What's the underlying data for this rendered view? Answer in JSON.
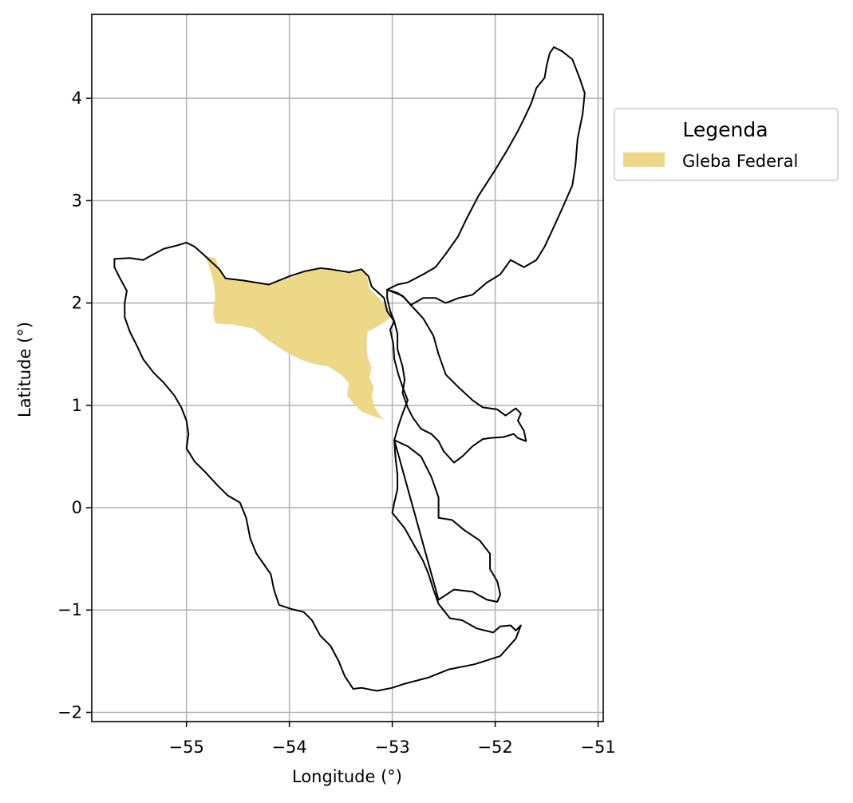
{
  "chart_data": {
    "type": "map",
    "xlabel": "Longitude (°)",
    "ylabel": "Latitude (°)",
    "xlim": [
      -55.92,
      -50.95
    ],
    "ylim": [
      -2.09,
      4.82
    ],
    "x_ticks": [
      {
        "value": -55,
        "label": "−55"
      },
      {
        "value": -54,
        "label": "−54"
      },
      {
        "value": -53,
        "label": "−53"
      },
      {
        "value": -52,
        "label": "−52"
      },
      {
        "value": -51,
        "label": "−51"
      }
    ],
    "y_ticks": [
      {
        "value": -2,
        "label": "−2"
      },
      {
        "value": -1,
        "label": "−1"
      },
      {
        "value": 0,
        "label": "0"
      },
      {
        "value": 1,
        "label": "1"
      },
      {
        "value": 2,
        "label": "2"
      },
      {
        "value": 3,
        "label": "3"
      },
      {
        "value": 4,
        "label": "4"
      }
    ],
    "grid": true,
    "legend": {
      "title": "Legenda",
      "placement": "outside-right-top",
      "entries": [
        {
          "label": "Gleba Federal",
          "color": "#ecd886"
        }
      ]
    },
    "layers": [
      {
        "name": "Gleba Federal",
        "kind": "fill",
        "color": "#ecd886",
        "coords": [
          [
            -54.82,
            2.46
          ],
          [
            -54.72,
            2.44
          ],
          [
            -54.68,
            2.33
          ],
          [
            -54.62,
            2.24
          ],
          [
            -54.45,
            2.22
          ],
          [
            -54.2,
            2.18
          ],
          [
            -53.95,
            2.26
          ],
          [
            -53.78,
            2.33
          ],
          [
            -53.6,
            2.32
          ],
          [
            -53.45,
            2.29
          ],
          [
            -53.32,
            2.33
          ],
          [
            -53.25,
            2.28
          ],
          [
            -53.22,
            2.14
          ],
          [
            -53.12,
            2.04
          ],
          [
            -53.05,
            1.95
          ],
          [
            -53.02,
            1.86
          ],
          [
            -53.08,
            1.81
          ],
          [
            -53.16,
            1.76
          ],
          [
            -53.24,
            1.72
          ],
          [
            -53.25,
            1.6
          ],
          [
            -53.24,
            1.47
          ],
          [
            -53.2,
            1.37
          ],
          [
            -53.22,
            1.27
          ],
          [
            -53.18,
            1.17
          ],
          [
            -53.2,
            1.08
          ],
          [
            -53.17,
            0.98
          ],
          [
            -53.12,
            0.9
          ],
          [
            -53.08,
            0.86
          ],
          [
            -53.18,
            0.89
          ],
          [
            -53.3,
            0.94
          ],
          [
            -53.38,
            1.02
          ],
          [
            -53.44,
            1.1
          ],
          [
            -53.42,
            1.22
          ],
          [
            -53.5,
            1.3
          ],
          [
            -53.62,
            1.38
          ],
          [
            -53.75,
            1.4
          ],
          [
            -53.9,
            1.45
          ],
          [
            -54.05,
            1.53
          ],
          [
            -54.2,
            1.63
          ],
          [
            -54.35,
            1.75
          ],
          [
            -54.55,
            1.79
          ],
          [
            -54.72,
            1.8
          ],
          [
            -54.74,
            1.9
          ],
          [
            -54.72,
            2.08
          ],
          [
            -54.74,
            2.22
          ],
          [
            -54.78,
            2.36
          ]
        ]
      },
      {
        "name": "outline-west",
        "kind": "outline",
        "coords": [
          [
            -55.7,
            2.43
          ],
          [
            -55.55,
            2.44
          ],
          [
            -55.42,
            2.42
          ],
          [
            -55.33,
            2.47
          ],
          [
            -55.22,
            2.53
          ],
          [
            -55.1,
            2.56
          ],
          [
            -55.0,
            2.59
          ],
          [
            -54.92,
            2.55
          ],
          [
            -54.82,
            2.46
          ],
          [
            -54.68,
            2.33
          ],
          [
            -54.62,
            2.24
          ],
          [
            -54.45,
            2.22
          ],
          [
            -54.2,
            2.18
          ],
          [
            -54.0,
            2.26
          ],
          [
            -53.85,
            2.31
          ],
          [
            -53.7,
            2.34
          ],
          [
            -53.6,
            2.33
          ],
          [
            -53.42,
            2.3
          ],
          [
            -53.3,
            2.33
          ],
          [
            -53.23,
            2.26
          ],
          [
            -53.2,
            2.16
          ],
          [
            -53.08,
            2.05
          ],
          [
            -53.05,
            1.92
          ],
          [
            -52.98,
            1.82
          ],
          [
            -53.02,
            1.74
          ],
          [
            -52.99,
            1.6
          ],
          [
            -52.98,
            1.45
          ],
          [
            -52.94,
            1.3
          ],
          [
            -52.9,
            1.18
          ],
          [
            -52.85,
            1.05
          ],
          [
            -52.9,
            0.92
          ],
          [
            -52.94,
            0.8
          ],
          [
            -52.98,
            0.66
          ],
          [
            -52.97,
            0.5
          ],
          [
            -52.95,
            0.32
          ],
          [
            -52.95,
            0.18
          ],
          [
            -52.98,
            0.05
          ],
          [
            -53.0,
            -0.05
          ],
          [
            -52.88,
            -0.2
          ],
          [
            -52.78,
            -0.38
          ],
          [
            -52.7,
            -0.52
          ],
          [
            -52.65,
            -0.64
          ],
          [
            -52.6,
            -0.8
          ],
          [
            -52.55,
            -0.94
          ],
          [
            -52.44,
            -1.08
          ],
          [
            -52.32,
            -1.1
          ],
          [
            -52.18,
            -1.18
          ],
          [
            -52.02,
            -1.22
          ],
          [
            -51.95,
            -1.16
          ],
          [
            -51.85,
            -1.15
          ],
          [
            -51.8,
            -1.2
          ],
          [
            -51.75,
            -1.15
          ],
          [
            -51.8,
            -1.28
          ],
          [
            -51.95,
            -1.45
          ],
          [
            -52.2,
            -1.53
          ],
          [
            -52.45,
            -1.58
          ],
          [
            -52.65,
            -1.66
          ],
          [
            -52.88,
            -1.72
          ],
          [
            -53.0,
            -1.76
          ],
          [
            -53.15,
            -1.79
          ],
          [
            -53.3,
            -1.76
          ],
          [
            -53.38,
            -1.77
          ],
          [
            -53.46,
            -1.65
          ],
          [
            -53.52,
            -1.5
          ],
          [
            -53.6,
            -1.35
          ],
          [
            -53.7,
            -1.25
          ],
          [
            -53.78,
            -1.1
          ],
          [
            -53.86,
            -1.02
          ],
          [
            -53.98,
            -0.99
          ],
          [
            -54.1,
            -0.95
          ],
          [
            -54.15,
            -0.8
          ],
          [
            -54.18,
            -0.65
          ],
          [
            -54.25,
            -0.55
          ],
          [
            -54.32,
            -0.45
          ],
          [
            -54.38,
            -0.3
          ],
          [
            -54.42,
            -0.1
          ],
          [
            -54.48,
            0.05
          ],
          [
            -54.6,
            0.12
          ],
          [
            -54.7,
            0.22
          ],
          [
            -54.82,
            0.35
          ],
          [
            -54.92,
            0.45
          ],
          [
            -55.0,
            0.58
          ],
          [
            -54.98,
            0.72
          ],
          [
            -55.0,
            0.85
          ],
          [
            -55.05,
            0.98
          ],
          [
            -55.12,
            1.1
          ],
          [
            -55.22,
            1.22
          ],
          [
            -55.32,
            1.32
          ],
          [
            -55.42,
            1.45
          ],
          [
            -55.48,
            1.58
          ],
          [
            -55.55,
            1.72
          ],
          [
            -55.6,
            1.86
          ],
          [
            -55.6,
            2.0
          ],
          [
            -55.58,
            2.12
          ],
          [
            -55.65,
            2.25
          ],
          [
            -55.7,
            2.35
          ],
          [
            -55.7,
            2.43
          ]
        ]
      },
      {
        "name": "outline-central",
        "kind": "outline",
        "coords": [
          [
            -53.05,
            2.13
          ],
          [
            -52.9,
            2.07
          ],
          [
            -52.82,
            1.98
          ],
          [
            -52.7,
            1.85
          ],
          [
            -52.6,
            1.68
          ],
          [
            -52.55,
            1.5
          ],
          [
            -52.48,
            1.3
          ],
          [
            -52.36,
            1.18
          ],
          [
            -52.22,
            1.05
          ],
          [
            -52.12,
            0.98
          ],
          [
            -51.98,
            0.96
          ],
          [
            -51.9,
            0.9
          ],
          [
            -51.8,
            0.97
          ],
          [
            -51.75,
            0.92
          ],
          [
            -51.78,
            0.85
          ],
          [
            -51.72,
            0.75
          ],
          [
            -51.7,
            0.65
          ],
          [
            -51.78,
            0.68
          ],
          [
            -51.82,
            0.72
          ],
          [
            -51.92,
            0.69
          ],
          [
            -52.05,
            0.68
          ],
          [
            -52.12,
            0.67
          ],
          [
            -52.22,
            0.6
          ],
          [
            -52.32,
            0.5
          ],
          [
            -52.4,
            0.44
          ],
          [
            -52.5,
            0.55
          ],
          [
            -52.55,
            0.65
          ],
          [
            -52.62,
            0.72
          ],
          [
            -52.72,
            0.77
          ],
          [
            -52.8,
            0.88
          ],
          [
            -52.85,
            0.98
          ],
          [
            -52.9,
            1.12
          ],
          [
            -52.88,
            1.25
          ],
          [
            -52.9,
            1.38
          ],
          [
            -52.95,
            1.55
          ],
          [
            -52.95,
            1.7
          ],
          [
            -52.98,
            1.82
          ],
          [
            -53.02,
            1.92
          ],
          [
            -53.05,
            2.05
          ],
          [
            -53.05,
            2.13
          ]
        ]
      },
      {
        "name": "outline-east-channel",
        "kind": "outline",
        "coords": [
          [
            -52.98,
            0.66
          ],
          [
            -52.85,
            0.6
          ],
          [
            -52.72,
            0.5
          ],
          [
            -52.62,
            0.3
          ],
          [
            -52.55,
            0.1
          ],
          [
            -52.55,
            -0.1
          ],
          [
            -52.42,
            -0.12
          ],
          [
            -52.3,
            -0.22
          ],
          [
            -52.15,
            -0.32
          ],
          [
            -52.05,
            -0.45
          ],
          [
            -52.05,
            -0.6
          ],
          [
            -51.98,
            -0.72
          ],
          [
            -51.95,
            -0.85
          ],
          [
            -51.98,
            -0.92
          ],
          [
            -52.08,
            -0.9
          ],
          [
            -52.22,
            -0.82
          ],
          [
            -52.4,
            -0.8
          ],
          [
            -52.55,
            -0.9
          ]
        ]
      },
      {
        "name": "outline-northeast",
        "kind": "outline",
        "coords": [
          [
            -53.05,
            2.13
          ],
          [
            -52.95,
            2.18
          ],
          [
            -52.85,
            2.2
          ],
          [
            -52.7,
            2.28
          ],
          [
            -52.58,
            2.35
          ],
          [
            -52.48,
            2.48
          ],
          [
            -52.36,
            2.65
          ],
          [
            -52.28,
            2.82
          ],
          [
            -52.16,
            3.05
          ],
          [
            -52.0,
            3.3
          ],
          [
            -51.88,
            3.5
          ],
          [
            -51.78,
            3.68
          ],
          [
            -51.72,
            3.8
          ],
          [
            -51.65,
            3.95
          ],
          [
            -51.6,
            4.1
          ],
          [
            -51.52,
            4.2
          ],
          [
            -51.5,
            4.32
          ],
          [
            -51.47,
            4.44
          ],
          [
            -51.43,
            4.5
          ],
          [
            -51.35,
            4.46
          ],
          [
            -51.25,
            4.38
          ],
          [
            -51.18,
            4.2
          ],
          [
            -51.13,
            4.05
          ],
          [
            -51.15,
            3.85
          ],
          [
            -51.2,
            3.6
          ],
          [
            -51.22,
            3.35
          ],
          [
            -51.25,
            3.15
          ],
          [
            -51.35,
            2.92
          ],
          [
            -51.45,
            2.7
          ],
          [
            -51.52,
            2.55
          ],
          [
            -51.6,
            2.42
          ],
          [
            -51.72,
            2.35
          ],
          [
            -51.85,
            2.42
          ],
          [
            -51.95,
            2.28
          ],
          [
            -52.08,
            2.2
          ],
          [
            -52.22,
            2.08
          ],
          [
            -52.35,
            2.05
          ],
          [
            -52.48,
            2.0
          ],
          [
            -52.58,
            2.05
          ],
          [
            -52.7,
            2.05
          ],
          [
            -52.82,
            1.98
          ],
          [
            -52.88,
            2.05
          ],
          [
            -52.95,
            2.1
          ],
          [
            -53.05,
            2.13
          ]
        ]
      }
    ]
  }
}
